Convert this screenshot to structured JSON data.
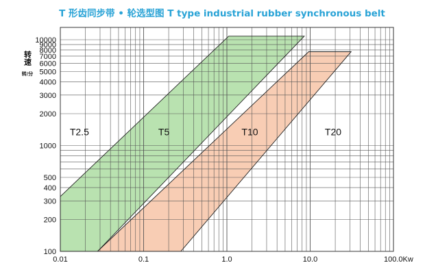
{
  "chart_data": {
    "type": "area",
    "title": "T 形齿同步带 • 轮选型图  T type industrial rubber synchronous belt",
    "title_color": "#29a3d6",
    "ylabel_main": "转速",
    "ylabel_unit": "转/分",
    "x_scale": "log",
    "y_scale": "log",
    "xlim": [
      0.01,
      100
    ],
    "ylim": [
      100,
      10000
    ],
    "grid": true,
    "x_ticks": [
      {
        "value": 0.01,
        "label": "0.01"
      },
      {
        "value": 0.1,
        "label": "0.1"
      },
      {
        "value": 1,
        "label": "1.0"
      },
      {
        "value": 10,
        "label": "10.0"
      },
      {
        "value": 100,
        "label": "100.0Kw"
      }
    ],
    "y_ticks": [
      {
        "value": 100,
        "label": "100"
      },
      {
        "value": 200,
        "label": "200"
      },
      {
        "value": 300,
        "label": "300"
      },
      {
        "value": 400,
        "label": "400"
      },
      {
        "value": 500,
        "label": "500"
      },
      {
        "value": 1000,
        "label": "1000"
      },
      {
        "value": 2000,
        "label": "2000"
      },
      {
        "value": 3000,
        "label": "3000"
      },
      {
        "value": 4000,
        "label": "4000"
      },
      {
        "value": 5000,
        "label": "5000"
      },
      {
        "value": 6000,
        "label": "6000"
      },
      {
        "value": 7000,
        "label": "7000"
      },
      {
        "value": 8000,
        "label": "8000"
      },
      {
        "value": 9000,
        "label": "9000"
      },
      {
        "value": 10000,
        "label": "10000"
      }
    ],
    "regions": [
      {
        "name": "T5",
        "color": "#b9e2b0",
        "polygon": [
          [
            0.01,
            100
          ],
          [
            0.01,
            330
          ],
          [
            1.05,
            10800
          ],
          [
            8.5,
            10800
          ],
          [
            0.028,
            100
          ]
        ]
      },
      {
        "name": "T10",
        "color": "#f8cdb4",
        "polygon": [
          [
            0.028,
            100
          ],
          [
            9.6,
            7700
          ],
          [
            31,
            7700
          ],
          [
            0.28,
            100
          ]
        ]
      }
    ],
    "labels": [
      {
        "text": "T2.5",
        "x": 0.013,
        "y": 1250
      },
      {
        "text": "T5",
        "x": 0.15,
        "y": 1250
      },
      {
        "text": "T10",
        "x": 1.5,
        "y": 1250
      },
      {
        "text": "T20",
        "x": 15,
        "y": 1250
      }
    ]
  }
}
